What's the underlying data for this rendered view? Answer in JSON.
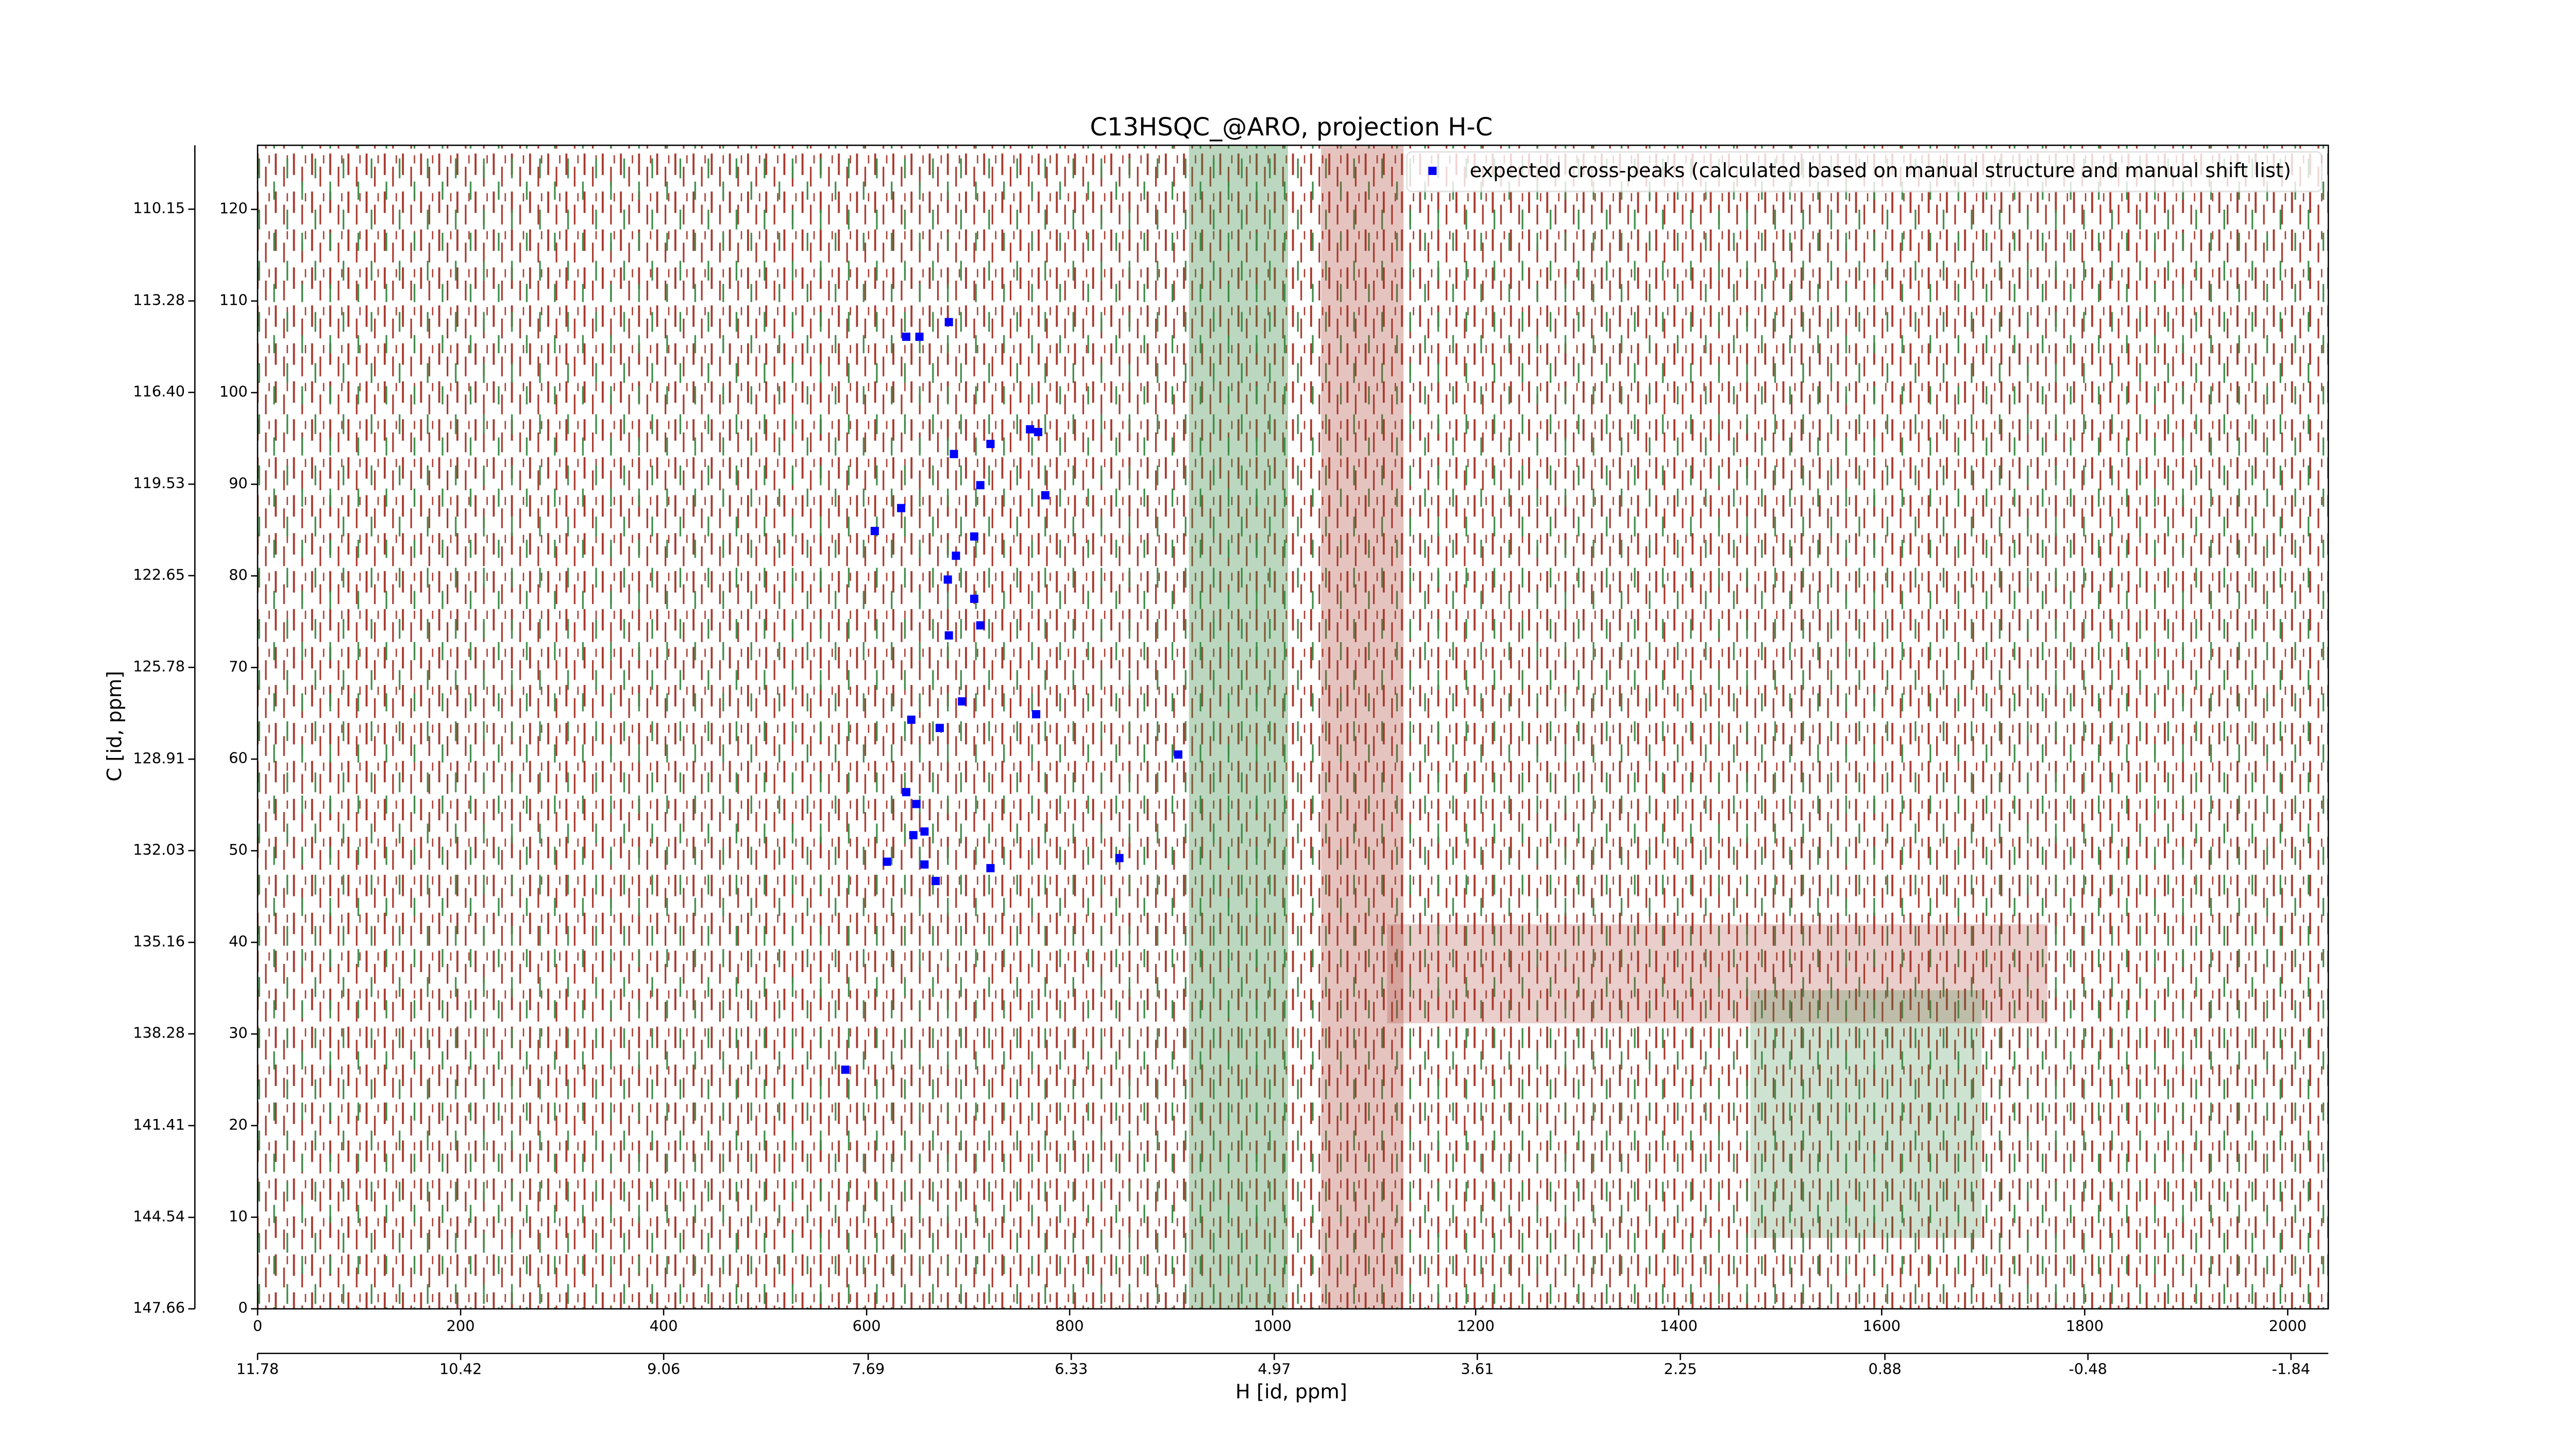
{
  "chart_data": {
    "type": "scatter",
    "title": "C13HSQC_@ARO, projection H-C",
    "xlabel": "H [id, ppm]",
    "ylabel": "C [id, ppm]",
    "xlim": [
      0,
      2040
    ],
    "xticks": [
      0,
      200,
      400,
      600,
      800,
      1000,
      1200,
      1400,
      1600,
      1800,
      2000
    ],
    "ylim": [
      0,
      127
    ],
    "yticks": [
      0,
      10,
      20,
      30,
      40,
      50,
      60,
      70,
      80,
      90,
      100,
      110,
      120
    ],
    "x2lim": [
      11.78,
      -2.09
    ],
    "x2ticks": [
      11.78,
      10.42,
      9.06,
      7.69,
      6.33,
      4.97,
      3.61,
      2.25,
      0.88,
      -0.48,
      -1.84
    ],
    "y2lim": [
      147.66,
      107.97
    ],
    "y2ticks": [
      147.66,
      144.54,
      141.41,
      138.28,
      135.16,
      132.03,
      128.91,
      125.78,
      122.65,
      119.53,
      {
        "value": 116.4,
        "label": "116.40"
      },
      113.28,
      110.15
    ],
    "legend": "upper right",
    "series": [
      {
        "name": "expected cross-peaks (calculated based on manual structure and manual shift list)",
        "color": "#0000ff",
        "x": [
          639,
          652,
          681,
          686,
          722,
          761,
          769,
          712,
          776,
          608,
          634,
          706,
          688,
          680,
          706,
          712,
          681,
          694,
          644,
          672,
          767,
          907,
          639,
          649,
          657,
          646,
          620,
          657,
          722,
          849,
          668,
          579
        ],
        "values": [
          106.1,
          106.1,
          107.7,
          93.3,
          94.4,
          96.0,
          95.7,
          89.9,
          88.8,
          84.9,
          87.4,
          84.3,
          82.2,
          79.6,
          77.5,
          74.6,
          73.5,
          66.3,
          64.3,
          63.4,
          64.9,
          60.5,
          56.4,
          55.1,
          52.1,
          51.7,
          48.8,
          48.5,
          48.1,
          49.2,
          46.7,
          26.1
        ]
      }
    ]
  }
}
